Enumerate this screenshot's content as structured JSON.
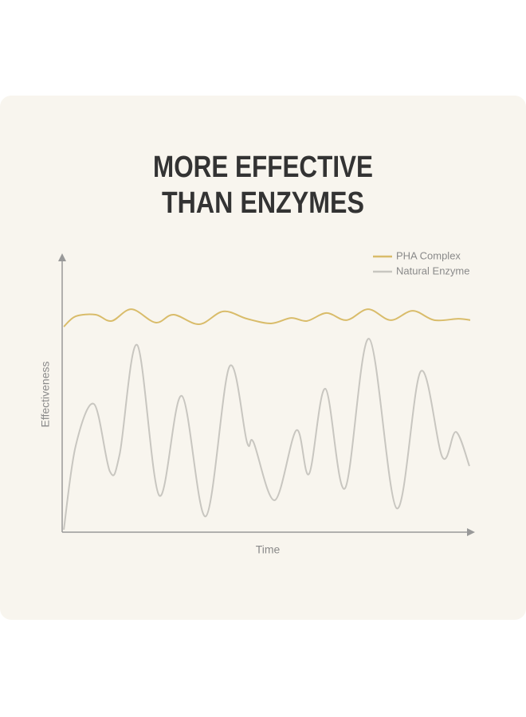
{
  "chart_data": {
    "type": "line",
    "title": [
      "MORE EFFECTIVE",
      "THAN ENZYMES"
    ],
    "x_label": "Time",
    "y_label": "Effectiveness",
    "xlim": [
      0,
      100
    ],
    "ylim": [
      0,
      100
    ],
    "legend": "top-right",
    "series": [
      {
        "name": "PHA Complex",
        "color": "#d9bc6a",
        "x": [
          0.4,
          3.3,
          8.2,
          12.1,
          17.0,
          22.9,
          27.3,
          33.6,
          39.5,
          45.3,
          51.2,
          56.1,
          60.0,
          64.8,
          69.7,
          75.0,
          80.5,
          85.9,
          91.2,
          97.1,
          100
        ],
        "values": [
          75.2,
          79.0,
          79.6,
          77.3,
          81.6,
          76.7,
          79.6,
          76.1,
          80.8,
          78.1,
          76.4,
          78.4,
          77.3,
          80.2,
          77.6,
          81.6,
          77.6,
          81.0,
          77.6,
          78.1,
          77.6
        ]
      },
      {
        "name": "Natural Enzyme",
        "color": "#c8c6c0",
        "x": [
          0.4,
          3.3,
          7.8,
          11.7,
          14.1,
          18.4,
          23.8,
          29.3,
          35.2,
          41.0,
          45.3,
          46.9,
          52.1,
          57.4,
          60.5,
          64.5,
          69.3,
          75.2,
          82.0,
          87.9,
          93.2,
          96.5,
          99.8
        ],
        "values": [
          0.9,
          31.5,
          46.9,
          22.2,
          28.6,
          68.5,
          13.4,
          49.9,
          5.8,
          60.6,
          32.9,
          32.9,
          11.7,
          37.3,
          21.3,
          52.5,
          16.0,
          70.8,
          8.7,
          58.9,
          27.4,
          36.7,
          24.2
        ]
      }
    ]
  }
}
